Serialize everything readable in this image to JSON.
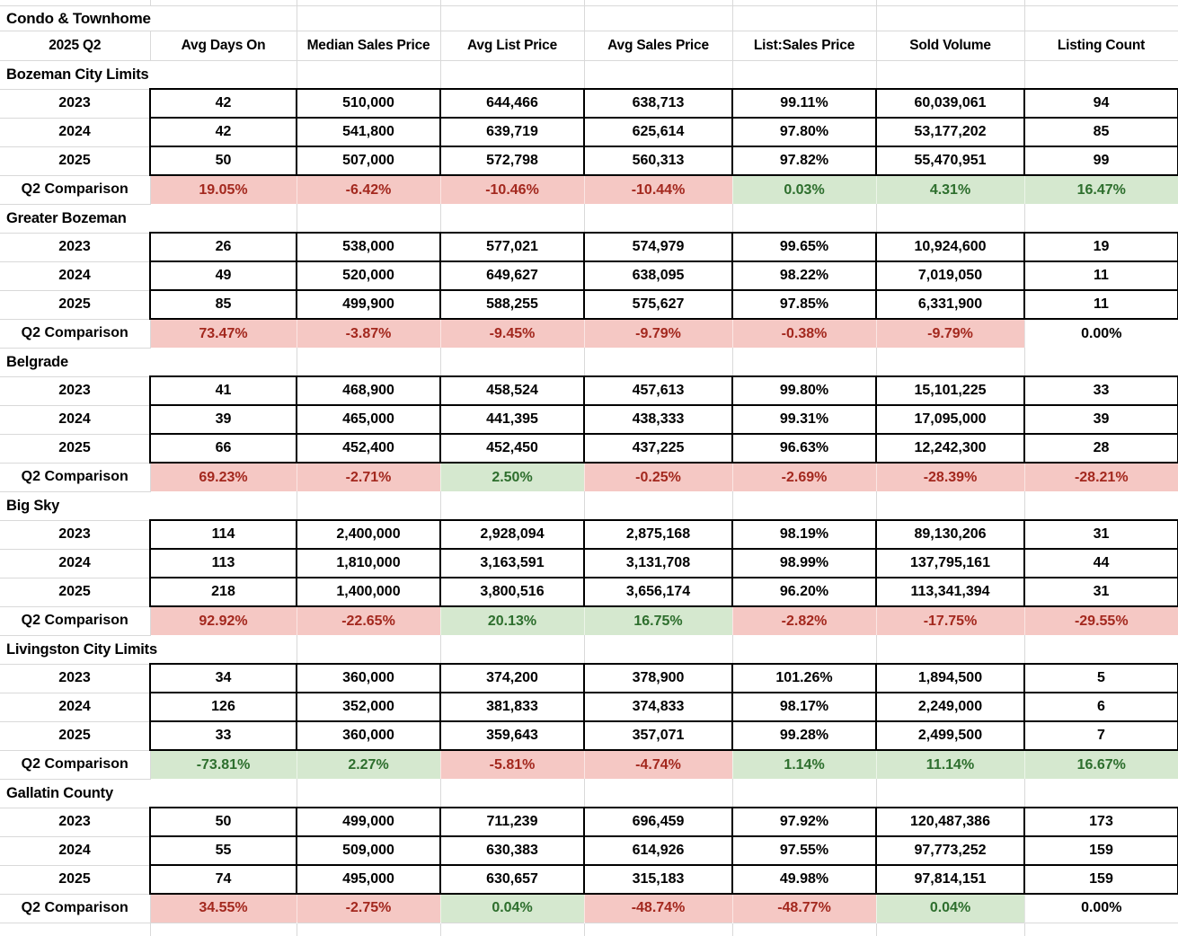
{
  "title": "Condo & Townhome",
  "header": {
    "quarter": "2025 Q2"
  },
  "columns": [
    "Avg Days On",
    "Median Sales Price",
    "Avg List Price",
    "Avg Sales Price",
    "List:Sales Price",
    "Sold Volume",
    "Listing Count"
  ],
  "comparison_label": "Q2 Comparison",
  "colors": {
    "negative_bg": "#f5c8c4",
    "negative_text": "#a3281e",
    "positive_bg": "#d5e8cf",
    "positive_text": "#2d6e2d",
    "gridline": "#d9d9d9",
    "cell_border": "#000000"
  },
  "sections": [
    {
      "name": "Bozeman City Limits",
      "rows": [
        {
          "year": "2023",
          "values": [
            "42",
            "510,000",
            "644,466",
            "638,713",
            "99.11%",
            "60,039,061",
            "94"
          ]
        },
        {
          "year": "2024",
          "values": [
            "42",
            "541,800",
            "639,719",
            "625,614",
            "97.80%",
            "53,177,202",
            "85"
          ]
        },
        {
          "year": "2025",
          "values": [
            "50",
            "507,000",
            "572,798",
            "560,313",
            "97.82%",
            "55,470,951",
            "99"
          ]
        }
      ],
      "comparison": [
        {
          "value": "19.05%",
          "status": "bad"
        },
        {
          "value": "-6.42%",
          "status": "bad"
        },
        {
          "value": "-10.46%",
          "status": "bad"
        },
        {
          "value": "-10.44%",
          "status": "bad"
        },
        {
          "value": "0.03%",
          "status": "good"
        },
        {
          "value": "4.31%",
          "status": "good"
        },
        {
          "value": "16.47%",
          "status": "good"
        }
      ]
    },
    {
      "name": "Greater Bozeman",
      "rows": [
        {
          "year": "2023",
          "values": [
            "26",
            "538,000",
            "577,021",
            "574,979",
            "99.65%",
            "10,924,600",
            "19"
          ]
        },
        {
          "year": "2024",
          "values": [
            "49",
            "520,000",
            "649,627",
            "638,095",
            "98.22%",
            "7,019,050",
            "11"
          ]
        },
        {
          "year": "2025",
          "values": [
            "85",
            "499,900",
            "588,255",
            "575,627",
            "97.85%",
            "6,331,900",
            "11"
          ]
        }
      ],
      "comparison": [
        {
          "value": "73.47%",
          "status": "bad"
        },
        {
          "value": "-3.87%",
          "status": "bad"
        },
        {
          "value": "-9.45%",
          "status": "bad"
        },
        {
          "value": "-9.79%",
          "status": "bad"
        },
        {
          "value": "-0.38%",
          "status": "bad"
        },
        {
          "value": "-9.79%",
          "status": "bad"
        },
        {
          "value": "0.00%",
          "status": "neutral"
        }
      ]
    },
    {
      "name": "Belgrade",
      "rows": [
        {
          "year": "2023",
          "values": [
            "41",
            "468,900",
            "458,524",
            "457,613",
            "99.80%",
            "15,101,225",
            "33"
          ]
        },
        {
          "year": "2024",
          "values": [
            "39",
            "465,000",
            "441,395",
            "438,333",
            "99.31%",
            "17,095,000",
            "39"
          ]
        },
        {
          "year": "2025",
          "values": [
            "66",
            "452,400",
            "452,450",
            "437,225",
            "96.63%",
            "12,242,300",
            "28"
          ]
        }
      ],
      "comparison": [
        {
          "value": "69.23%",
          "status": "bad"
        },
        {
          "value": "-2.71%",
          "status": "bad"
        },
        {
          "value": "2.50%",
          "status": "good"
        },
        {
          "value": "-0.25%",
          "status": "bad"
        },
        {
          "value": "-2.69%",
          "status": "bad"
        },
        {
          "value": "-28.39%",
          "status": "bad"
        },
        {
          "value": "-28.21%",
          "status": "bad"
        }
      ]
    },
    {
      "name": "Big Sky",
      "rows": [
        {
          "year": "2023",
          "values": [
            "114",
            "2,400,000",
            "2,928,094",
            "2,875,168",
            "98.19%",
            "89,130,206",
            "31"
          ]
        },
        {
          "year": "2024",
          "values": [
            "113",
            "1,810,000",
            "3,163,591",
            "3,131,708",
            "98.99%",
            "137,795,161",
            "44"
          ]
        },
        {
          "year": "2025",
          "values": [
            "218",
            "1,400,000",
            "3,800,516",
            "3,656,174",
            "96.20%",
            "113,341,394",
            "31"
          ]
        }
      ],
      "comparison": [
        {
          "value": "92.92%",
          "status": "bad"
        },
        {
          "value": "-22.65%",
          "status": "bad"
        },
        {
          "value": "20.13%",
          "status": "good"
        },
        {
          "value": "16.75%",
          "status": "good"
        },
        {
          "value": "-2.82%",
          "status": "bad"
        },
        {
          "value": "-17.75%",
          "status": "bad"
        },
        {
          "value": "-29.55%",
          "status": "bad"
        }
      ]
    },
    {
      "name": "Livingston City Limits",
      "rows": [
        {
          "year": "2023",
          "values": [
            "34",
            "360,000",
            "374,200",
            "378,900",
            "101.26%",
            "1,894,500",
            "5"
          ]
        },
        {
          "year": "2024",
          "values": [
            "126",
            "352,000",
            "381,833",
            "374,833",
            "98.17%",
            "2,249,000",
            "6"
          ]
        },
        {
          "year": "2025",
          "values": [
            "33",
            "360,000",
            "359,643",
            "357,071",
            "99.28%",
            "2,499,500",
            "7"
          ]
        }
      ],
      "comparison": [
        {
          "value": "-73.81%",
          "status": "good"
        },
        {
          "value": "2.27%",
          "status": "good"
        },
        {
          "value": "-5.81%",
          "status": "bad"
        },
        {
          "value": "-4.74%",
          "status": "bad"
        },
        {
          "value": "1.14%",
          "status": "good"
        },
        {
          "value": "11.14%",
          "status": "good"
        },
        {
          "value": "16.67%",
          "status": "good"
        }
      ]
    },
    {
      "name": "Gallatin County",
      "rows": [
        {
          "year": "2023",
          "values": [
            "50",
            "499,000",
            "711,239",
            "696,459",
            "97.92%",
            "120,487,386",
            "173"
          ]
        },
        {
          "year": "2024",
          "values": [
            "55",
            "509,000",
            "630,383",
            "614,926",
            "97.55%",
            "97,773,252",
            "159"
          ]
        },
        {
          "year": "2025",
          "values": [
            "74",
            "495,000",
            "630,657",
            "315,183",
            "49.98%",
            "97,814,151",
            "159"
          ]
        }
      ],
      "comparison": [
        {
          "value": "34.55%",
          "status": "bad"
        },
        {
          "value": "-2.75%",
          "status": "bad"
        },
        {
          "value": "0.04%",
          "status": "good"
        },
        {
          "value": "-48.74%",
          "status": "bad"
        },
        {
          "value": "-48.77%",
          "status": "bad"
        },
        {
          "value": "0.04%",
          "status": "good"
        },
        {
          "value": "0.00%",
          "status": "neutral"
        }
      ]
    }
  ]
}
